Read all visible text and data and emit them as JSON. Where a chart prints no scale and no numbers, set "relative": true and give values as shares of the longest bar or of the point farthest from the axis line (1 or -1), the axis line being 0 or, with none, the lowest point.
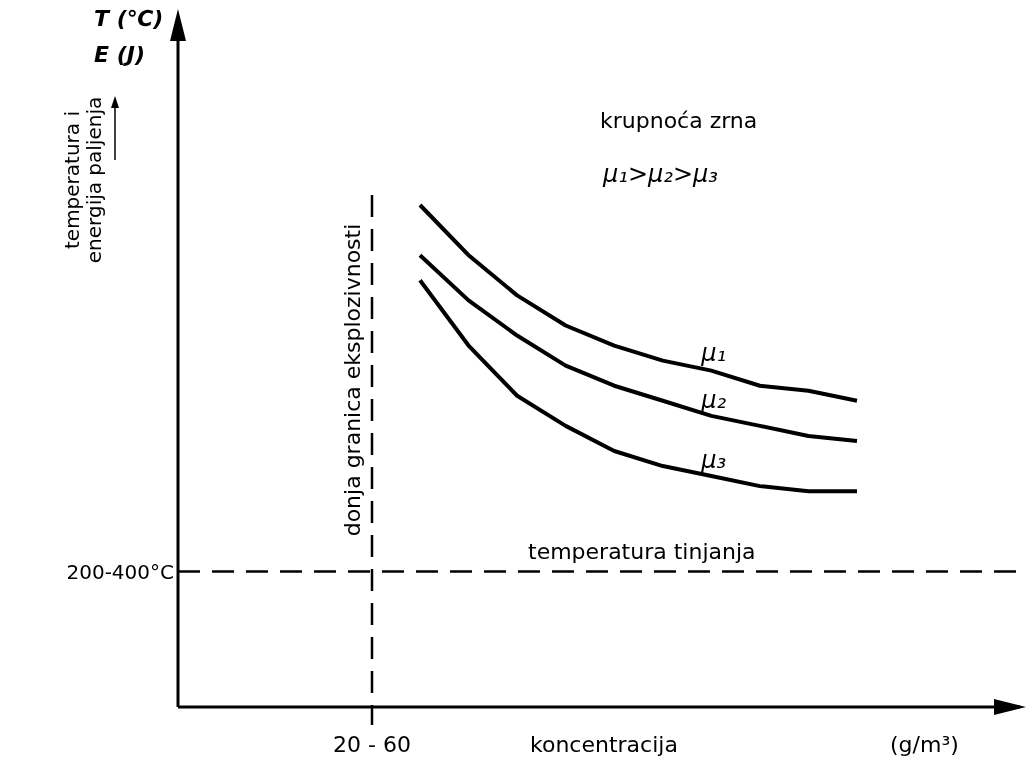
{
  "chart_data": {
    "type": "line",
    "relative": true,
    "xlabel": "koncentracija",
    "categories": [
      null,
      null,
      null,
      null,
      null,
      null,
      null,
      null,
      null,
      null
    ],
    "series": [
      {
        "name": "μ₁",
        "color": "#000000",
        "values": [
          1,
          0.9,
          0.82,
          0.76,
          0.72,
          0.69,
          0.67,
          0.64,
          0.63,
          0.61
        ]
      },
      {
        "name": "μ₂",
        "color": "#000000",
        "values": [
          0.9,
          0.81,
          0.74,
          0.68,
          0.64,
          0.61,
          0.58,
          0.56,
          0.54,
          0.53
        ]
      },
      {
        "name": "μ₃",
        "color": "#000000",
        "values": [
          0.85,
          0.72,
          0.62,
          0.56,
          0.51,
          0.48,
          0.46,
          0.44,
          0.43,
          0.43
        ]
      }
    ],
    "ref_lines": [
      {
        "axis": "x",
        "value": "20 - 60",
        "label": "donja granica eksplozivnosti",
        "line_style": "dashed"
      },
      {
        "axis": "y",
        "value": 0.27,
        "label": "temperatura tinjanja",
        "line_style": "dashed"
      }
    ],
    "annotations": [
      "T (℃)",
      "E (J)",
      "krupnoća zrna",
      "μ₁>μ₂>μ₃",
      "(g/m³)",
      "200-400°C",
      "temperatura i\nenergija paljenja"
    ],
    "legend": false,
    "grid": false,
    "marker": "none",
    "line_style": "solid"
  }
}
